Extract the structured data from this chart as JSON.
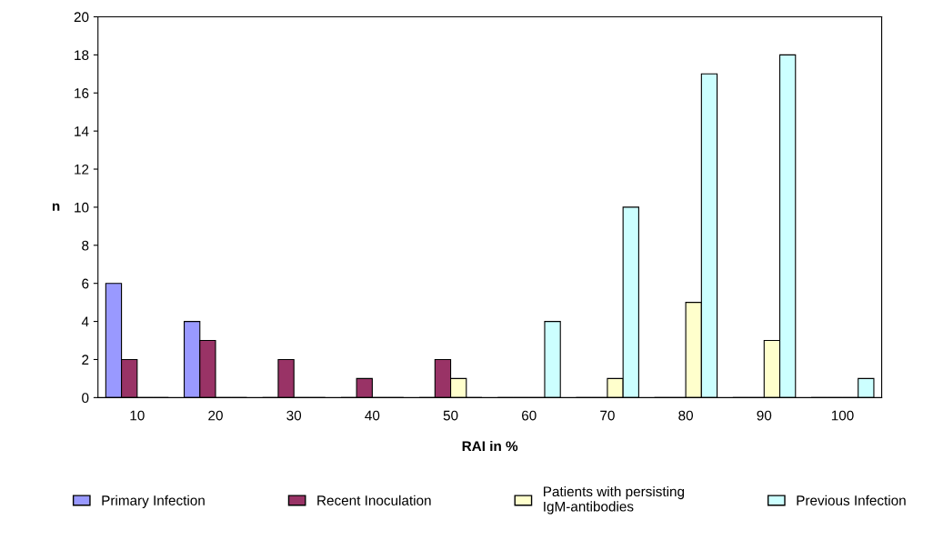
{
  "chart_data": {
    "type": "bar",
    "xlabel": "RAI in %",
    "ylabel": "n",
    "categories": [
      "10",
      "20",
      "30",
      "40",
      "50",
      "60",
      "70",
      "80",
      "90",
      "100"
    ],
    "series": [
      {
        "name": "Primary Infection",
        "color": "#9999ff",
        "values": [
          6,
          4,
          0,
          0,
          0,
          0,
          0,
          0,
          0,
          0
        ]
      },
      {
        "name": "Recent Inoculation",
        "color": "#993366",
        "values": [
          2,
          3,
          2,
          1,
          2,
          0,
          0,
          0,
          0,
          0
        ]
      },
      {
        "name": "Patients with persisting IgM-antibodies",
        "color": "#ffffcc",
        "values": [
          0,
          0,
          0,
          0,
          1,
          0,
          1,
          5,
          3,
          0
        ]
      },
      {
        "name": "Previous Infection",
        "color": "#ccffff",
        "values": [
          0,
          0,
          0,
          0,
          0,
          4,
          10,
          17,
          18,
          1
        ]
      }
    ],
    "ylim": [
      0,
      20
    ],
    "yticks": [
      0,
      2,
      4,
      6,
      8,
      10,
      12,
      14,
      16,
      18,
      20
    ],
    "grid": false,
    "legend": "bottom"
  }
}
